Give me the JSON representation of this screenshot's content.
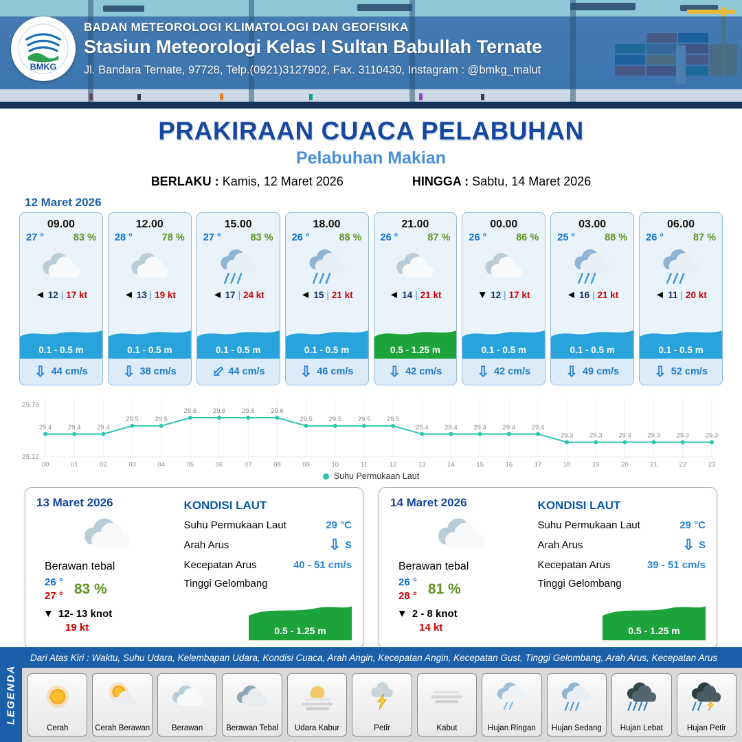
{
  "header": {
    "agency": "BADAN METEOROLOGI KLIMATOLOGI DAN GEOFISIKA",
    "station": "Stasiun Meteorologi Kelas I Sultan Babullah Ternate",
    "address": "Jl. Bandara Ternate, 97728, Telp.(0921)3127902, Fax. 3110430, Instagram : @bmkg_malut",
    "logo_text": "BMKG"
  },
  "title": {
    "main": "PRAKIRAAN CUACA PELABUHAN",
    "sub": "Pelabuhan Makian",
    "valid_from_label": "BERLAKU :",
    "valid_from": "Kamis, 12 Maret 2026",
    "valid_to_label": "HINGGA :",
    "valid_to": "Sabtu, 14 Maret 2026"
  },
  "forecast": {
    "date": "12 Maret 2026",
    "wind_sep": "|",
    "cards": [
      {
        "time": "09.00",
        "temp": "27 °",
        "humidity": "83 %",
        "icon": "berawan",
        "wind_deg": 180,
        "wind_speed": "12",
        "gust": "17 kt",
        "wave": "0.1 - 0.5 m",
        "wave_color": "#29a3dc",
        "current_deg": 0,
        "current": "44 cm/s"
      },
      {
        "time": "12.00",
        "temp": "28 °",
        "humidity": "78 %",
        "icon": "berawan",
        "wind_deg": 180,
        "wind_speed": "13",
        "gust": "19 kt",
        "wave": "0.1 - 0.5 m",
        "wave_color": "#29a3dc",
        "current_deg": 0,
        "current": "38 cm/s"
      },
      {
        "time": "15.00",
        "temp": "27 °",
        "humidity": "83 %",
        "icon": "hujan-sedang",
        "wind_deg": 180,
        "wind_speed": "17",
        "gust": "24 kt",
        "wave": "0.1 - 0.5 m",
        "wave_color": "#29a3dc",
        "current_deg": 45,
        "current": "44 cm/s"
      },
      {
        "time": "18.00",
        "temp": "26 °",
        "humidity": "88 %",
        "icon": "hujan-sedang",
        "wind_deg": 180,
        "wind_speed": "15",
        "gust": "21 kt",
        "wave": "0.1 - 0.5 m",
        "wave_color": "#29a3dc",
        "current_deg": 0,
        "current": "46 cm/s"
      },
      {
        "time": "21.00",
        "temp": "26 °",
        "humidity": "87 %",
        "icon": "berawan",
        "wind_deg": 180,
        "wind_speed": "14",
        "gust": "21 kt",
        "wave": "0.5 - 1.25 m",
        "wave_color": "#1ca43b",
        "current_deg": 0,
        "current": "42 cm/s"
      },
      {
        "time": "00.00",
        "temp": "26 °",
        "humidity": "86 %",
        "icon": "berawan",
        "wind_deg": 90,
        "wind_speed": "12",
        "gust": "17 kt",
        "wave": "0.1 - 0.5 m",
        "wave_color": "#29a3dc",
        "current_deg": 0,
        "current": "42 cm/s"
      },
      {
        "time": "03.00",
        "temp": "25 °",
        "humidity": "88 %",
        "icon": "hujan-sedang",
        "wind_deg": 180,
        "wind_speed": "16",
        "gust": "21 kt",
        "wave": "0.1 - 0.5 m",
        "wave_color": "#29a3dc",
        "current_deg": 0,
        "current": "49 cm/s"
      },
      {
        "time": "06.00",
        "temp": "26 °",
        "humidity": "87 %",
        "icon": "hujan-sedang",
        "wind_deg": 180,
        "wind_speed": "11",
        "gust": "20 kt",
        "wave": "0.1 - 0.5 m",
        "wave_color": "#29a3dc",
        "current_deg": 0,
        "current": "52 cm/s"
      }
    ]
  },
  "chart_data": {
    "type": "line",
    "x": [
      "00",
      "01",
      "02",
      "03",
      "04",
      "05",
      "06",
      "07",
      "08",
      "09",
      "10",
      "11",
      "12",
      "13",
      "14",
      "15",
      "16",
      "17",
      "18",
      "19",
      "20",
      "21",
      "22",
      "23"
    ],
    "series": [
      {
        "name": "Suhu Permukaan Laut",
        "values": [
          29.4,
          29.4,
          29.4,
          29.5,
          29.5,
          29.6,
          29.6,
          29.6,
          29.6,
          29.5,
          29.5,
          29.5,
          29.5,
          29.4,
          29.4,
          29.4,
          29.4,
          29.4,
          29.3,
          29.3,
          29.3,
          29.3,
          29.3,
          29.3
        ]
      }
    ],
    "ylim": [
      29.12,
      29.76
    ],
    "line_color": "#2fc5b2",
    "legend": "Suhu Permukaan Laut",
    "legend_position": "bottom-center",
    "grid": true
  },
  "daily": [
    {
      "date": "13 Maret 2026",
      "icon": "berawan",
      "condition": "Berawan tebal",
      "temp_min": "26 °",
      "temp_max": "27 °",
      "humidity": "83 %",
      "wind_deg": 90,
      "wind": "12- 13 knot",
      "gust": "19 kt",
      "sea": {
        "title": "KONDISI LAUT",
        "sst_label": "Suhu Permukaan Laut",
        "sst": "29 °C",
        "dir_label": "Arah Arus",
        "dir": "S",
        "dir_deg": 0,
        "speed_label": "Kecepatan Arus",
        "speed": "40 - 51 cm/s",
        "wave_label": "Tinggi Gelombang",
        "wave": "0.5 - 1.25 m",
        "wave_color": "#1ca43b"
      }
    },
    {
      "date": "14 Maret 2026",
      "icon": "berawan",
      "condition": "Berawan tebal",
      "temp_min": "26 °",
      "temp_max": "28 °",
      "humidity": "81 %",
      "wind_deg": 90,
      "wind": "2 - 8 knot",
      "gust": "14 kt",
      "sea": {
        "title": "KONDISI LAUT",
        "sst_label": "Suhu Permukaan Laut",
        "sst": "29 °C",
        "dir_label": "Arah Arus",
        "dir": "S",
        "dir_deg": 0,
        "speed_label": "Kecepatan Arus",
        "speed": "39 - 51 cm/s",
        "wave_label": "Tinggi Gelombang",
        "wave": "0.5 - 1.25 m",
        "wave_color": "#1ca43b"
      }
    }
  ],
  "legend": {
    "title": "LEGENDA",
    "description": "Dari Atas Kiri : Waktu, Suhu Udara, Kelembapan Udara, Kondisi Cuaca, Arah Angin, Kecepatan Angin, Kecepatan Gust, Tinggi Gelombang, Arah Arus, Kecepatan Arus",
    "items": [
      {
        "label": "Cerah",
        "icon": "cerah"
      },
      {
        "label": "Cerah Berawan",
        "icon": "cerah-berawan"
      },
      {
        "label": "Berawan",
        "icon": "berawan"
      },
      {
        "label": "Berawan Tebal",
        "icon": "berawan-tebal"
      },
      {
        "label": "Udara Kabur",
        "icon": "udara-kabur"
      },
      {
        "label": "Petir",
        "icon": "petir"
      },
      {
        "label": "Kabut",
        "icon": "kabut"
      },
      {
        "label": "Hujan Ringan",
        "icon": "hujan-ringan"
      },
      {
        "label": "Hujan Sedang",
        "icon": "hujan-sedang"
      },
      {
        "label": "Hujan Lebat",
        "icon": "hujan-lebat"
      },
      {
        "label": "Hujan Petir",
        "icon": "hujan-petir"
      }
    ]
  }
}
